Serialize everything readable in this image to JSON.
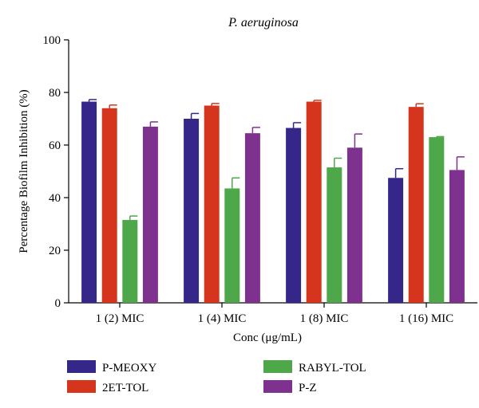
{
  "chart_data": {
    "type": "bar",
    "title": "P. aeruginosa",
    "xlabel": "Conc (μg/mL)",
    "ylabel": "Percentage Biofilm Inhibition (%)",
    "ylim": [
      0,
      100
    ],
    "yticks": [
      "0",
      "20",
      "40",
      "60",
      "80",
      "100"
    ],
    "categories": [
      "1 (2) MIC",
      "1 (4) MIC",
      "1 (8) MIC",
      "1 (16) MIC"
    ],
    "error_bars": "upper",
    "legend_position": "bottom",
    "series": [
      {
        "name": "P-MEOXY",
        "color": "#35278a",
        "values": [
          76.5,
          70,
          66.5,
          47.5
        ],
        "errors": [
          0.8,
          2,
          2,
          3.5
        ]
      },
      {
        "name": "2ET-TOL",
        "color": "#d4351c",
        "values": [
          74,
          75,
          76.5,
          74.5
        ],
        "errors": [
          1.2,
          0.8,
          0.5,
          1.2
        ]
      },
      {
        "name": "RABYL-TOL",
        "color": "#4ea84a",
        "values": [
          31.5,
          43.5,
          51.5,
          63
        ],
        "errors": [
          1.5,
          4,
          3.5,
          0.2
        ]
      },
      {
        "name": "P-Z",
        "color": "#7f3190",
        "values": [
          67,
          64.5,
          59,
          50.5
        ],
        "errors": [
          1.8,
          2.2,
          5.2,
          5
        ]
      }
    ]
  }
}
